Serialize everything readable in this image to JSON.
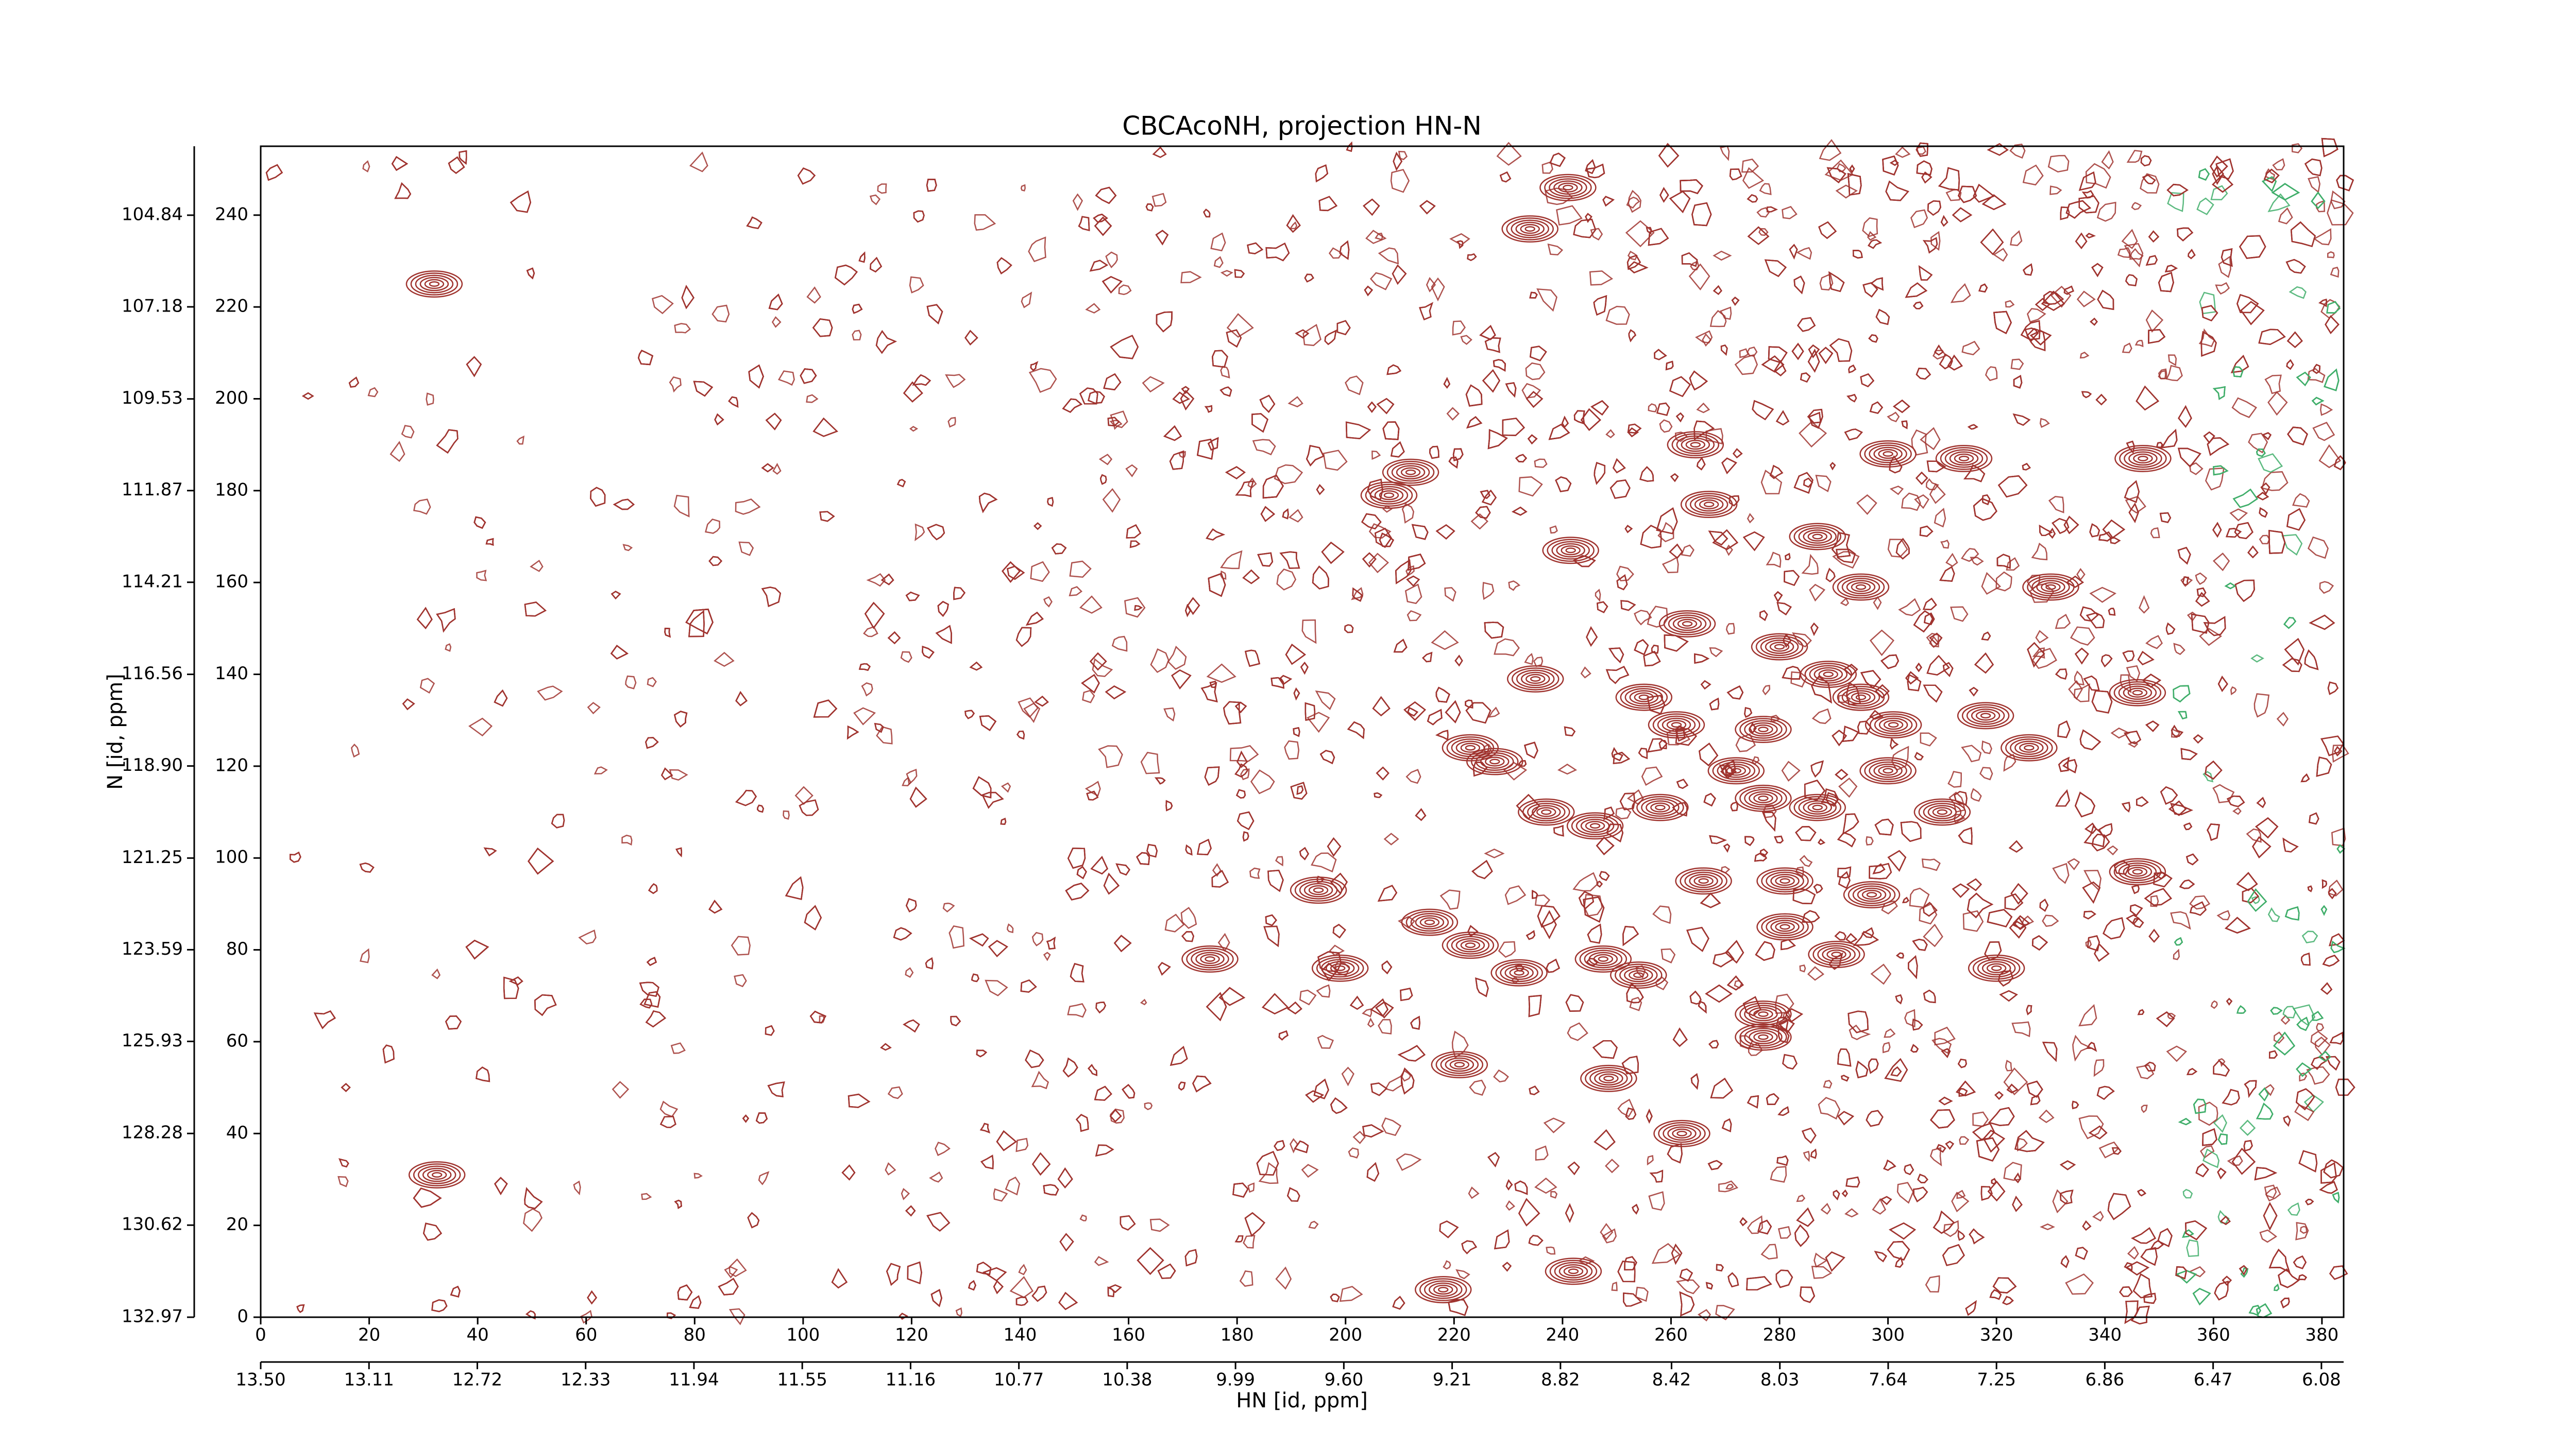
{
  "chart_data": {
    "type": "contour",
    "title": "CBCAcoNH, projection HN-N",
    "xlabel": "HN [id, ppm]",
    "ylabel": "N [id, ppm]",
    "color": "#a0342f",
    "x": [
      241,
      234,
      32,
      264.5,
      300,
      314,
      347,
      212,
      208,
      267,
      287,
      241.5,
      295,
      330,
      263,
      280,
      235,
      289,
      255,
      295,
      346,
      318,
      261,
      277,
      301,
      223,
      227.5,
      326,
      272,
      300,
      237,
      258,
      310,
      287,
      246,
      277,
      346,
      266,
      281,
      297,
      195,
      215.5,
      281,
      175,
      199,
      232,
      247.5,
      254,
      290.5,
      320,
      223,
      277,
      277,
      221,
      248.5,
      262,
      32.5,
      218,
      242
    ],
    "values": [
      246,
      237,
      225,
      190,
      188,
      187,
      187,
      184,
      179,
      177,
      170,
      167,
      159,
      159,
      151,
      146,
      139,
      140,
      135,
      135,
      136,
      131,
      129,
      128,
      129,
      124,
      121,
      124,
      119,
      119,
      110,
      111,
      110,
      111,
      107,
      113,
      97,
      95,
      95,
      92,
      93,
      86,
      85,
      78,
      76,
      75,
      78,
      74.5,
      79,
      76,
      81,
      66,
      61,
      55,
      52,
      40,
      31,
      6,
      10
    ],
    "xlim": [
      0,
      384
    ],
    "ylim": [
      0,
      255
    ],
    "xticks": [
      0,
      20,
      40,
      60,
      80,
      100,
      120,
      140,
      160,
      180,
      200,
      220,
      240,
      260,
      280,
      300,
      320,
      340,
      360,
      380
    ],
    "yticks": [
      0,
      20,
      40,
      60,
      80,
      100,
      120,
      140,
      160,
      180,
      200,
      220,
      240
    ],
    "x2lim": [
      13.5,
      6.0
    ],
    "x2ticks": [
      {
        "value": 13.5,
        "label": "13.50"
      },
      13.11,
      12.72,
      12.33,
      11.94,
      11.55,
      11.16,
      10.77,
      10.38,
      9.99,
      {
        "value": 9.6,
        "label": "9.60"
      },
      9.21,
      8.82,
      8.42,
      8.03,
      7.64,
      7.25,
      6.86,
      6.47,
      6.08
    ],
    "y2lim": [
      132.97,
      103.08
    ],
    "y2ticks": [
      132.97,
      130.62,
      128.28,
      125.93,
      123.59,
      121.25,
      {
        "value": 118.9,
        "label": "118.90"
      },
      116.56,
      114.21,
      111.87,
      109.53,
      107.18,
      104.84
    ]
  }
}
